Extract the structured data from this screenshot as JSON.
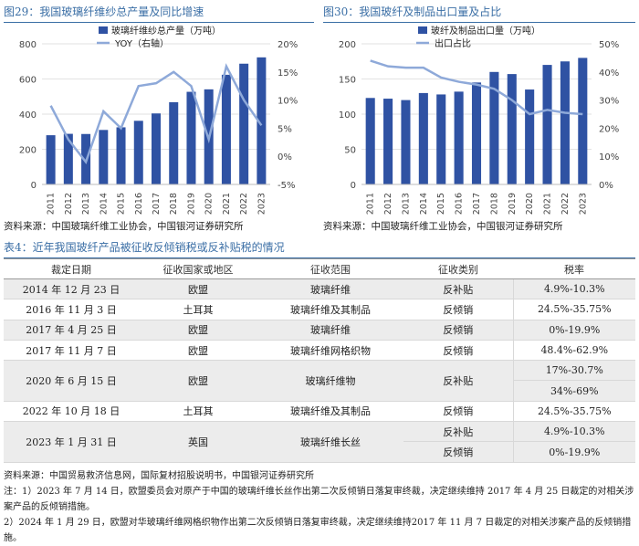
{
  "fig29": {
    "title": "图29：我国玻璃纤维纱总产量及同比增速",
    "source": "资料来源：中国玻璃纤维工业协会，中国银河证券研究所"
  },
  "fig30": {
    "title": "图30：我国玻纤及制品出口量及占比",
    "source": "资料来源：中国玻璃纤维工业协会，中国银河证券研究所"
  },
  "chart_data": [
    {
      "type": "bar",
      "categories": [
        "2011",
        "2012",
        "2013",
        "2014",
        "2015",
        "2016",
        "2017",
        "2018",
        "2019",
        "2020",
        "2021",
        "2022",
        "2023"
      ],
      "series": [
        {
          "name": "玻璃纤维纱总产量（万吨）",
          "type": "bar",
          "axis": "left",
          "values": [
            280,
            288,
            287,
            310,
            325,
            362,
            404,
            468,
            527,
            541,
            624,
            687,
            723
          ]
        },
        {
          "name": "YOY（右轴）",
          "type": "line",
          "axis": "right",
          "values": [
            9,
            3,
            -1,
            8,
            5,
            12.5,
            13,
            15,
            12.5,
            3,
            16,
            10,
            5.5
          ]
        }
      ],
      "yticks_left": [
        "0",
        "200",
        "400",
        "600",
        "800"
      ],
      "yticks_right": [
        "-5%",
        "0%",
        "5%",
        "10%",
        "15%",
        "20%"
      ],
      "ylim_left": [
        0,
        800
      ],
      "ylim_right": [
        -5,
        20
      ],
      "colors": {
        "bar": "#2f52a3",
        "line": "#8ea9d9"
      },
      "legend_position": "top",
      "grid": true
    },
    {
      "type": "bar",
      "categories": [
        "2011",
        "2012",
        "2013",
        "2014",
        "2015",
        "2016",
        "2017",
        "2018",
        "2019",
        "2020",
        "2021",
        "2022",
        "2023"
      ],
      "series": [
        {
          "name": "玻纤及制品出口量（万吨）",
          "type": "bar",
          "axis": "left",
          "values": [
            123,
            122,
            120,
            130,
            128,
            132,
            145,
            160,
            157,
            135,
            170,
            175,
            180
          ]
        },
        {
          "name": "出口占比",
          "type": "line",
          "axis": "right",
          "values": [
            44,
            42,
            41.5,
            41.5,
            38,
            36.5,
            35.5,
            34,
            30,
            25,
            26.5,
            25.5,
            25
          ]
        }
      ],
      "yticks_left": [
        "0",
        "50",
        "100",
        "150",
        "200"
      ],
      "yticks_right": [
        "0%",
        "10%",
        "20%",
        "30%",
        "40%",
        "50%"
      ],
      "ylim_left": [
        0,
        200
      ],
      "ylim_right": [
        0,
        50
      ],
      "colors": {
        "bar": "#2f52a3",
        "line": "#8ea9d9"
      },
      "legend_position": "top",
      "grid": true
    }
  ],
  "table": {
    "title": "表4：近年我国玻纤产品被征收反倾销税或反补贴税的情况",
    "headers": [
      "裁定日期",
      "征收国家或地区",
      "征收范围",
      "征收类别",
      "税率"
    ],
    "groups": [
      {
        "date": "2014 年 12 月 23 日",
        "region": "欧盟",
        "scope": "玻璃纤维",
        "items": [
          {
            "type": "反补贴",
            "rate": "4.9%-10.3%"
          }
        ]
      },
      {
        "date": "2016 年 11 月 3 日",
        "region": "土耳其",
        "scope": "玻璃纤维及其制品",
        "items": [
          {
            "type": "反倾销",
            "rate": "24.5%-35.75%"
          }
        ]
      },
      {
        "date": "2017 年 4 月 25 日",
        "region": "欧盟",
        "scope": "玻璃纤维",
        "items": [
          {
            "type": "反倾销",
            "rate": "0%-19.9%"
          }
        ]
      },
      {
        "date": "2017 年 11 月 7 日",
        "region": "欧盟",
        "scope": "玻璃纤维网格织物",
        "items": [
          {
            "type": "反倾销",
            "rate": "48.4%-62.9%"
          }
        ]
      },
      {
        "date": "2020 年 6 月 15 日",
        "region": "欧盟",
        "scope": "玻璃纤维物",
        "items": [
          {
            "type": "反补贴",
            "rate": "17%-30.7%"
          },
          {
            "type": "",
            "rate": "34%-69%"
          }
        ]
      },
      {
        "date": "2022 年 10 月 18 日",
        "region": "土耳其",
        "scope": "玻璃纤维及其制品",
        "items": [
          {
            "type": "反倾销",
            "rate": "24.5%-35.75%"
          }
        ]
      },
      {
        "date": "2023 年 1 月 31 日",
        "region": "英国",
        "scope": "玻璃纤维长丝",
        "items": [
          {
            "type": "反补贴",
            "rate": "4.9%-10.3%"
          },
          {
            "type": "反倾销",
            "rate": "0%-19.9%"
          }
        ]
      }
    ]
  },
  "notes": [
    "资料来源：中国贸易救济信息网，国际复材招股说明书，中国银河证券研究所",
    "注：1）2023 年 7 月 14 日，欧盟委员会对原产于中国的玻璃纤维长丝作出第二次反倾销日落复审终裁，决定继续维持 2017 年 4 月 25 日裁定的对相关涉案产品的反倾销措施。",
    "2）2024 年 1 月 29 日，欧盟对华玻璃纤维网格织物作出第二次反倾销日落复审终裁，决定继续维持2017 年 11 月 7 日裁定的对相关涉案产品的反倾销措施。"
  ]
}
